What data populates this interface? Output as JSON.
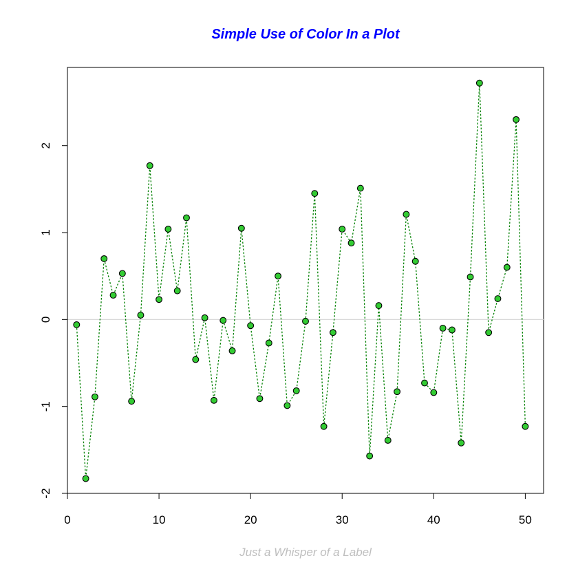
{
  "chart_data": {
    "type": "line",
    "title": "Simple Use of Color In a Plot",
    "xlabel": "Just a Whisper of a Label",
    "ylabel": "",
    "xlim": [
      0,
      52
    ],
    "ylim": [
      -2,
      2.9
    ],
    "x_ticks": [
      0,
      10,
      20,
      30,
      40,
      50
    ],
    "y_ticks": [
      -2,
      -1,
      0,
      1,
      2
    ],
    "x_tick_labels": [
      "0",
      "10",
      "20",
      "30",
      "40",
      "50"
    ],
    "y_tick_labels": [
      "-2",
      "-1",
      "0",
      "1",
      "2"
    ],
    "grid": false,
    "reference_line_y": 0,
    "series": [
      {
        "x": [
          1,
          2,
          3,
          4,
          5,
          6,
          7,
          8,
          9,
          10,
          11,
          12,
          13,
          14,
          15,
          16,
          17,
          18,
          19,
          20,
          21,
          22,
          23,
          24,
          25,
          26,
          27,
          28,
          29,
          30,
          31,
          32,
          33,
          34,
          35,
          36,
          37,
          38,
          39,
          40,
          41,
          42,
          43,
          44,
          45,
          46,
          47,
          48,
          49,
          50
        ],
        "values": [
          -0.06,
          -1.83,
          -0.89,
          0.7,
          0.28,
          0.53,
          -0.94,
          0.05,
          1.77,
          0.23,
          1.04,
          0.33,
          1.17,
          -0.46,
          0.02,
          -0.93,
          -0.01,
          -0.36,
          1.05,
          -0.07,
          -0.91,
          -0.27,
          0.5,
          -0.99,
          -0.82,
          -0.02,
          1.45,
          -1.23,
          -0.15,
          1.04,
          0.88,
          1.51,
          -1.57,
          0.16,
          -1.39,
          -0.83,
          1.21,
          0.67,
          -0.73,
          -0.84,
          -0.1,
          -0.12,
          -1.42,
          0.49,
          2.72,
          -0.15,
          0.24,
          0.6,
          2.3,
          -1.23
        ]
      }
    ],
    "colors": {
      "title": "#0000ff",
      "xlabel": "#bebebe",
      "line": "#008000",
      "point_fill": "#33cc33",
      "point_stroke": "#000000",
      "reference_line": "#d9d9d9",
      "axis": "#000000"
    }
  }
}
